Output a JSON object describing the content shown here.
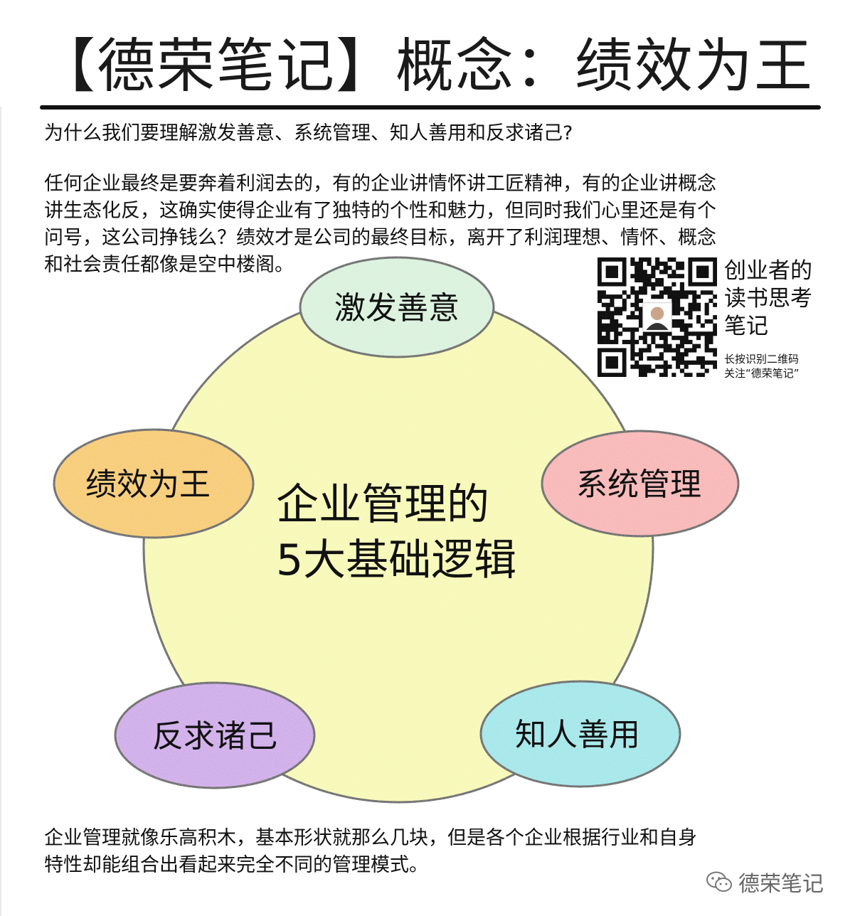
{
  "header": {
    "title": "【德荣笔记】概念：绩效为王"
  },
  "intro": {
    "question": "为什么我们要理解激发善意、系统管理、知人善用和反求诸己?",
    "paragraph_lines": [
      "任何企业最终是要奔着利润去的，有的企业讲情怀讲工匠精神，有的企业讲概念",
      "讲生态化反，这确实使得企业有了独特的个性和魅力，但同时我们心里还是有个",
      "问号，这公司挣钱么？绩效才是公司的最终目标，离开了利润理想、情怀、概念",
      "和社会责任都像是空中楼阁。"
    ]
  },
  "diagram": {
    "center_line1": "企业管理的",
    "center_line2": "5大基础逻辑",
    "nodes": [
      {
        "label": "激发善意",
        "color": "#d4f0d8"
      },
      {
        "label": "系统管理",
        "color": "#f7a9a8"
      },
      {
        "label": "知人善用",
        "color": "#8fe3e6"
      },
      {
        "label": "反求诸己",
        "color": "#c79be6"
      },
      {
        "label": "绩效为王",
        "color": "#f6c23e"
      }
    ],
    "circle_color": "#f6f8a8"
  },
  "qr": {
    "tag_lines": [
      "创业者的",
      "读书思考",
      "笔记"
    ],
    "hint_lines": [
      "长按识别二维码",
      "关注“德荣笔记”"
    ]
  },
  "footer": {
    "lines": [
      "企业管理就像乐高积木，基本形状就那么几块，但是各个企业根据行业和自身",
      "特性却能组合出看起来完全不同的管理模式。"
    ],
    "watermark": "德荣笔记"
  }
}
